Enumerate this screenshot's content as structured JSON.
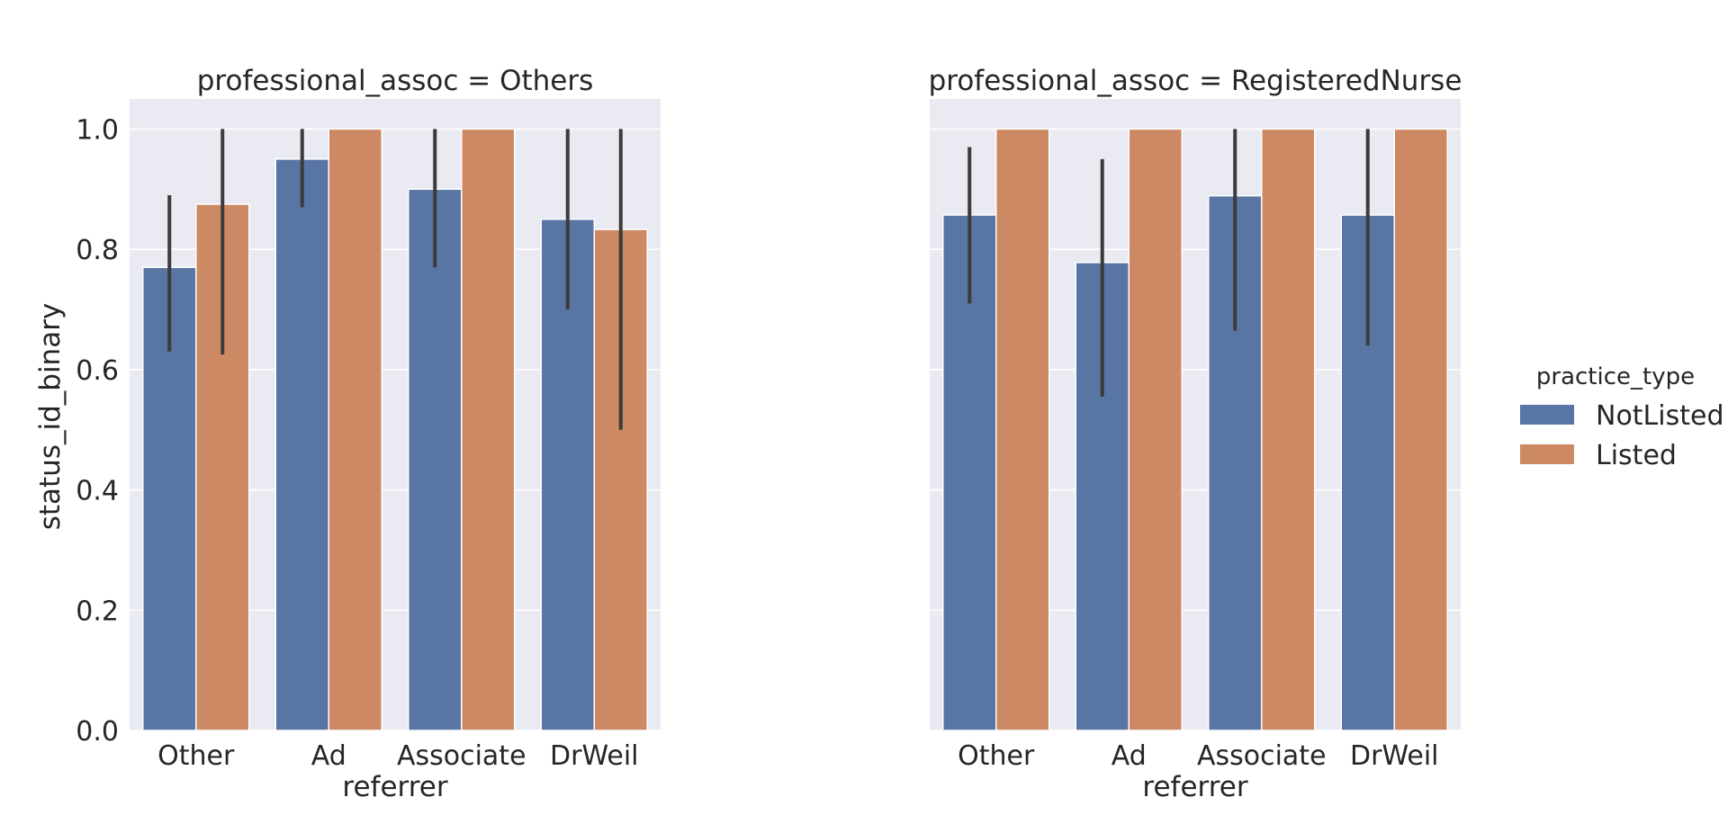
{
  "chart_data": {
    "type": "bar",
    "ylabel": "status_id_binary",
    "xlabel": "referrer",
    "ylim": [
      0,
      1.05
    ],
    "yticks": [
      "0.0",
      "0.2",
      "0.4",
      "0.6",
      "0.8",
      "1.0"
    ],
    "categories": [
      "Other",
      "Ad",
      "Associate",
      "DrWeil"
    ],
    "legend": {
      "title": "practice_type",
      "placement": "right",
      "entries": [
        "NotListed",
        "Listed"
      ]
    },
    "grid": true,
    "colors": {
      "NotListed": "#5975a4",
      "Listed": "#cc8963",
      "background": "#eaeaf2",
      "errorbar": "#3b3b3b"
    },
    "panels": [
      {
        "title": "professional_assoc = Others",
        "series": [
          {
            "name": "NotListed",
            "values": [
              0.77,
              0.95,
              0.9,
              0.85
            ],
            "ci_low": [
              0.63,
              0.87,
              0.77,
              0.7
            ],
            "ci_high": [
              0.89,
              1.0,
              1.0,
              1.0
            ]
          },
          {
            "name": "Listed",
            "values": [
              0.875,
              1.0,
              1.0,
              0.833
            ],
            "ci_low": [
              0.625,
              1.0,
              1.0,
              0.5
            ],
            "ci_high": [
              1.0,
              1.0,
              1.0,
              1.0
            ]
          }
        ]
      },
      {
        "title": "professional_assoc = RegisteredNurse",
        "series": [
          {
            "name": "NotListed",
            "values": [
              0.857,
              0.778,
              0.889,
              0.857
            ],
            "ci_low": [
              0.71,
              0.555,
              0.665,
              0.64
            ],
            "ci_high": [
              0.97,
              0.95,
              1.0,
              1.0
            ]
          },
          {
            "name": "Listed",
            "values": [
              1.0,
              1.0,
              1.0,
              1.0
            ],
            "ci_low": [
              1.0,
              1.0,
              1.0,
              1.0
            ],
            "ci_high": [
              1.0,
              1.0,
              1.0,
              1.0
            ]
          }
        ]
      }
    ]
  }
}
